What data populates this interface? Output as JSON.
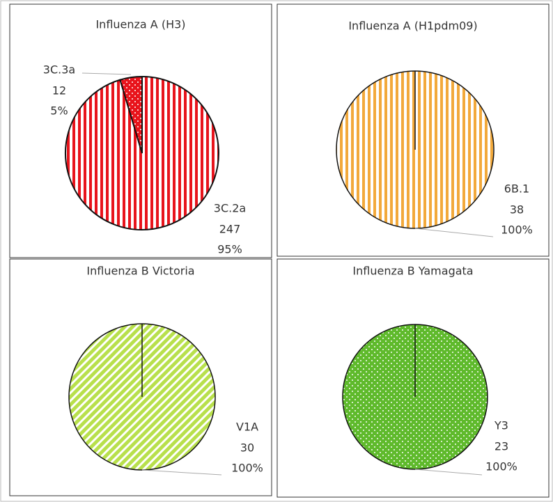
{
  "chart_data": [
    {
      "type": "pie",
      "title": "Influenza A (H3)",
      "categories": [
        "3C.2a",
        "3C.3a"
      ],
      "values": [
        247,
        12
      ],
      "percent_labels": [
        "95%",
        "5%"
      ],
      "colors": [
        "#e8141c",
        "#e8141c"
      ],
      "patterns": [
        "vertical",
        "dots"
      ]
    },
    {
      "type": "pie",
      "title": "Influenza A (H1pdm09)",
      "categories": [
        "6B.1"
      ],
      "values": [
        38
      ],
      "percent_labels": [
        "100%"
      ],
      "colors": [
        "#f2a93b"
      ],
      "patterns": [
        "vertical"
      ]
    },
    {
      "type": "pie",
      "title": "Influenza B Victoria",
      "categories": [
        "V1A"
      ],
      "values": [
        30
      ],
      "percent_labels": [
        "100%"
      ],
      "colors": [
        "#b8e04c"
      ],
      "patterns": [
        "diagonal"
      ]
    },
    {
      "type": "pie",
      "title": "Influenza B Yamagata",
      "categories": [
        "Y3"
      ],
      "values": [
        23
      ],
      "percent_labels": [
        "100%"
      ],
      "colors": [
        "#5fba2c"
      ],
      "patterns": [
        "dots"
      ]
    }
  ]
}
